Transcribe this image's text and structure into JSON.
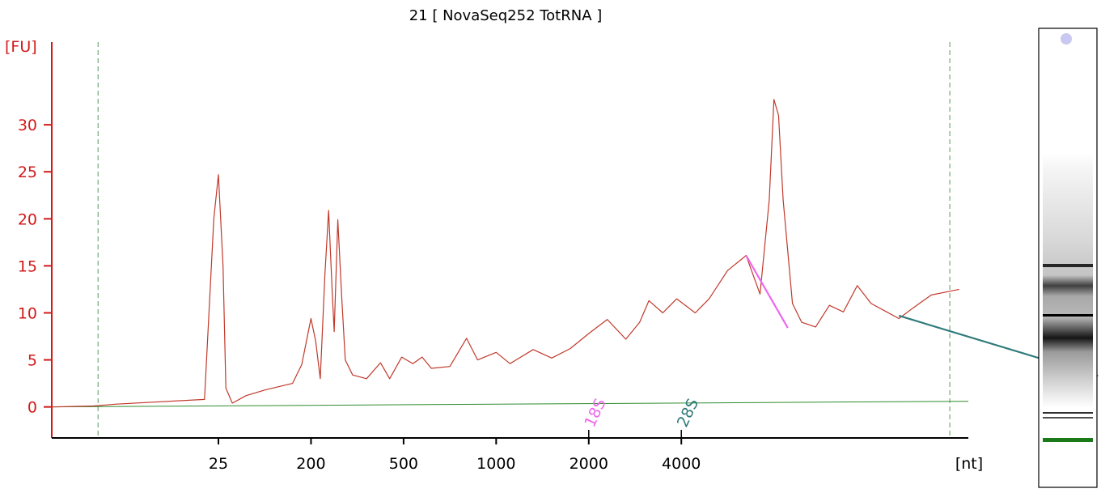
{
  "colors": {
    "axis_y": "#d11a1a",
    "axis_x": "#000000",
    "trace": "#c0392b",
    "baseline": "#2e8b2e",
    "marker_dash": "#5a9a5a",
    "peak_18s": "#ee66ee",
    "peak_28s": "#2f7a7a",
    "gel_lane_bottom": "#1a7a1a",
    "gel_top_dot": "#c8c8f0"
  },
  "chart_data": {
    "type": "line",
    "title": "21  [ NovaSeq252 TotRNA ]",
    "ylabel": "[FU]",
    "xlabel": "[nt]",
    "ylim": [
      -3.3,
      37.5
    ],
    "y_ticks": [
      0,
      5,
      10,
      15,
      20,
      25,
      30
    ],
    "x_ticks": [
      {
        "label": "25",
        "pos": 1
      },
      {
        "label": "200",
        "pos": 2
      },
      {
        "label": "500",
        "pos": 3
      },
      {
        "label": "1000",
        "pos": 4
      },
      {
        "label": "2000",
        "pos": 5
      },
      {
        "label": "4000",
        "pos": 6
      }
    ],
    "xlim": [
      -0.8,
      9.1
    ],
    "marker_lines": [
      -0.3,
      8.9
    ],
    "baseline": [
      [
        -0.8,
        0.0
      ],
      [
        9.1,
        0.6
      ]
    ],
    "series": [
      {
        "points": [
          [
            -0.8,
            0.0
          ],
          [
            -0.35,
            0.1
          ],
          [
            -0.1,
            0.3
          ],
          [
            0.85,
            0.8
          ],
          [
            0.95,
            20.0
          ],
          [
            1.0,
            24.7
          ],
          [
            1.05,
            15.0
          ],
          [
            1.08,
            2.0
          ],
          [
            1.15,
            0.4
          ],
          [
            1.3,
            1.2
          ],
          [
            1.5,
            1.8
          ],
          [
            1.8,
            2.5
          ],
          [
            1.9,
            4.5
          ],
          [
            2.0,
            9.4
          ],
          [
            2.05,
            7.0
          ],
          [
            2.1,
            3.0
          ],
          [
            2.15,
            14.0
          ],
          [
            2.19,
            20.9
          ],
          [
            2.23,
            12.0
          ],
          [
            2.25,
            8.0
          ],
          [
            2.29,
            19.9
          ],
          [
            2.33,
            12.0
          ],
          [
            2.37,
            5.0
          ],
          [
            2.45,
            3.4
          ],
          [
            2.6,
            3.0
          ],
          [
            2.75,
            4.7
          ],
          [
            2.85,
            3.0
          ],
          [
            2.98,
            5.3
          ],
          [
            3.1,
            4.6
          ],
          [
            3.2,
            5.3
          ],
          [
            3.3,
            4.1
          ],
          [
            3.5,
            4.3
          ],
          [
            3.68,
            7.3
          ],
          [
            3.8,
            5.0
          ],
          [
            4.0,
            5.8
          ],
          [
            4.15,
            4.6
          ],
          [
            4.4,
            6.1
          ],
          [
            4.6,
            5.2
          ],
          [
            4.8,
            6.2
          ],
          [
            5.0,
            7.8
          ],
          [
            5.2,
            9.3
          ],
          [
            5.4,
            7.2
          ],
          [
            5.55,
            9.0
          ],
          [
            5.65,
            11.3
          ],
          [
            5.8,
            10.0
          ],
          [
            5.95,
            11.5
          ],
          [
            6.15,
            10.0
          ],
          [
            6.3,
            11.5
          ],
          [
            6.5,
            14.5
          ],
          [
            6.7,
            16.1
          ],
          [
            6.85,
            12.0
          ],
          [
            6.95,
            22.0
          ],
          [
            7.0,
            32.7
          ],
          [
            7.05,
            31.0
          ],
          [
            7.1,
            22.0
          ],
          [
            7.2,
            11.0
          ],
          [
            7.3,
            9.0
          ],
          [
            7.45,
            8.5
          ],
          [
            7.6,
            10.8
          ],
          [
            7.75,
            10.1
          ],
          [
            7.9,
            12.9
          ],
          [
            8.05,
            11.0
          ],
          [
            8.2,
            10.2
          ],
          [
            8.35,
            9.4
          ],
          [
            8.5,
            10.5
          ],
          [
            8.7,
            11.9
          ],
          [
            8.9,
            12.3
          ],
          [
            9.0,
            12.5
          ]
        ]
      }
    ],
    "annotations": [
      {
        "label": "18S",
        "x": 5.0
      },
      {
        "label": "28S",
        "x": 6.0
      }
    ]
  }
}
